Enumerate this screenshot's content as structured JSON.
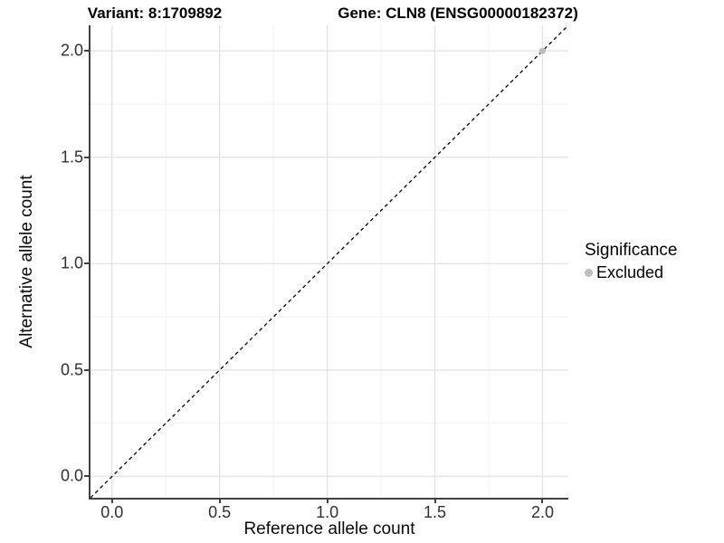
{
  "titles": {
    "variant": "Variant: 8:1709892",
    "gene": "Gene: CLN8 (ENSG00000182372)"
  },
  "chart_data": {
    "type": "scatter",
    "title_left": "Variant: 8:1709892",
    "title_right": "Gene: CLN8 (ENSG00000182372)",
    "xlabel": "Reference allele count",
    "ylabel": "Alternative allele count",
    "x_ticks": [
      0.0,
      0.5,
      1.0,
      1.5,
      2.0
    ],
    "y_ticks": [
      0.0,
      0.5,
      1.0,
      1.5,
      2.0
    ],
    "x_range": [
      -0.1,
      2.12
    ],
    "y_range": [
      -0.1,
      2.12
    ],
    "grid": {
      "major": true,
      "minor": true,
      "background": "#ffffff"
    },
    "reference_line": {
      "kind": "identity",
      "slope": 1,
      "intercept": 0,
      "style": "dashed",
      "color": "#000000"
    },
    "points": [
      {
        "x": 2.0,
        "y": 2.0,
        "series": "Excluded"
      }
    ],
    "legend": {
      "title": "Significance",
      "position": "right",
      "items": [
        {
          "label": "Excluded",
          "color": "#bdbdbd"
        }
      ]
    }
  },
  "colors": {
    "major_grid": "#e4e4e4",
    "minor_grid": "#f2f2f2",
    "axis_line": "#424242",
    "tick_label": "#303030",
    "axis_title": "#0a0a0a",
    "title": "#000000",
    "point": "#bdbdbd"
  }
}
